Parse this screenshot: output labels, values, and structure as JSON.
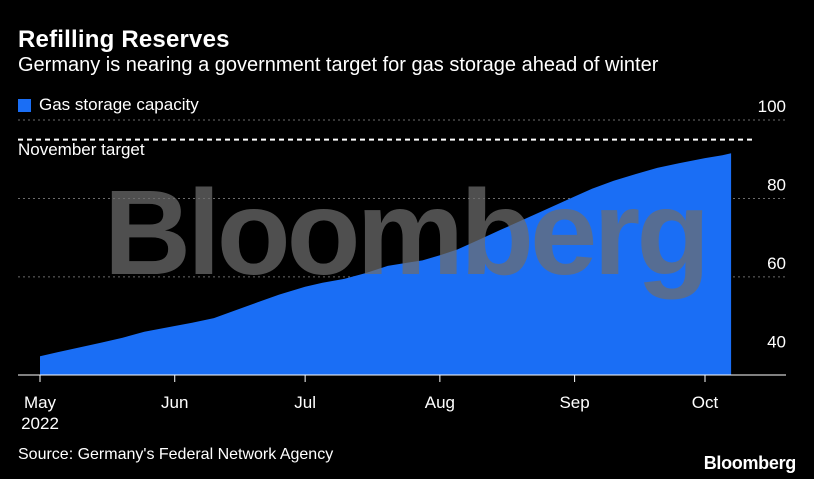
{
  "title": "Refilling Reserves",
  "subtitle": "Germany is nearing a government target for gas storage ahead of winter",
  "source": "Source: Germany's Federal Network Agency",
  "brand": "Bloomberg",
  "watermark": "Bloomberg",
  "colors": {
    "background": "#000000",
    "series": "#1a6ef5",
    "grid": "#6b6b6b",
    "target_line": "#ffffff",
    "watermark": "#6e6e6e"
  },
  "chart_data": {
    "type": "area",
    "legend": [
      "Gas storage capacity"
    ],
    "legend_position": "top-left",
    "y_ticks": [
      40,
      60,
      80,
      100
    ],
    "ylim": [
      35,
      100
    ],
    "y_axis_side": "right",
    "x_ticks": [
      {
        "date": "2022-05-01",
        "label": "May",
        "sublabel": "2022"
      },
      {
        "date": "2022-06-01",
        "label": "Jun"
      },
      {
        "date": "2022-07-01",
        "label": "Jul"
      },
      {
        "date": "2022-08-01",
        "label": "Aug"
      },
      {
        "date": "2022-09-01",
        "label": "Sep"
      },
      {
        "date": "2022-10-01",
        "label": "Oct"
      }
    ],
    "grid": true,
    "reference_line": {
      "label": "November target",
      "value": 95,
      "style": "dashed"
    },
    "series": [
      {
        "name": "Gas storage capacity",
        "points": [
          [
            "2022-05-01",
            39.8
          ],
          [
            "2022-05-05",
            40.8
          ],
          [
            "2022-05-10",
            42.0
          ],
          [
            "2022-05-15",
            43.2
          ],
          [
            "2022-05-20",
            44.5
          ],
          [
            "2022-05-25",
            46.0
          ],
          [
            "2022-06-01",
            47.5
          ],
          [
            "2022-06-05",
            48.3
          ],
          [
            "2022-06-10",
            49.5
          ],
          [
            "2022-06-15",
            51.5
          ],
          [
            "2022-06-20",
            53.5
          ],
          [
            "2022-06-25",
            55.5
          ],
          [
            "2022-07-01",
            57.5
          ],
          [
            "2022-07-05",
            58.5
          ],
          [
            "2022-07-10",
            59.5
          ],
          [
            "2022-07-15",
            61.0
          ],
          [
            "2022-07-20",
            62.8
          ],
          [
            "2022-07-25",
            63.7
          ],
          [
            "2022-07-28",
            64.2
          ],
          [
            "2022-08-01",
            65.5
          ],
          [
            "2022-08-05",
            67.0
          ],
          [
            "2022-08-10",
            69.5
          ],
          [
            "2022-08-15",
            72.0
          ],
          [
            "2022-08-20",
            74.5
          ],
          [
            "2022-08-25",
            77.0
          ],
          [
            "2022-09-01",
            80.5
          ],
          [
            "2022-09-05",
            82.5
          ],
          [
            "2022-09-10",
            84.5
          ],
          [
            "2022-09-15",
            86.2
          ],
          [
            "2022-09-20",
            87.8
          ],
          [
            "2022-09-25",
            89.0
          ],
          [
            "2022-10-01",
            90.3
          ],
          [
            "2022-10-05",
            91.0
          ],
          [
            "2022-10-07",
            91.5
          ]
        ]
      }
    ]
  }
}
